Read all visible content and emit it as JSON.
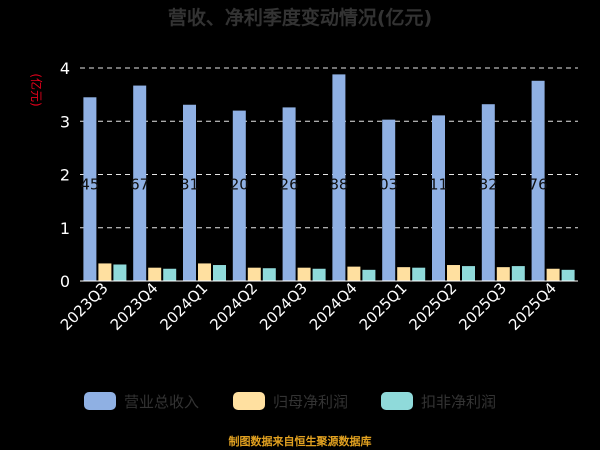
{
  "chart_data": {
    "type": "bar",
    "title": "营收、净利季度变动情况(亿元)",
    "ylabel": "(亿元)",
    "xlabel": "",
    "ylim": [
      0,
      4
    ],
    "yticks": [
      0,
      1,
      2,
      3,
      4
    ],
    "grid": true,
    "legend_position": "bottom",
    "categories": [
      "2023Q3",
      "2023Q4",
      "2024Q1",
      "2024Q2",
      "2024Q3",
      "2024Q4",
      "2025Q1",
      "2025Q2",
      "2025Q3",
      "2025Q4"
    ],
    "series": [
      {
        "name": "营业总收入",
        "color": "#8fb0e3",
        "values": [
          3.45,
          3.67,
          3.31,
          3.2,
          3.26,
          3.88,
          3.03,
          3.11,
          3.32,
          3.76
        ],
        "labels": [
          "45",
          "67",
          "31",
          "20",
          "26",
          "88",
          "03",
          "11",
          "32",
          "76"
        ]
      },
      {
        "name": "归母净利润",
        "color": "#ffe0a0",
        "values": [
          0.33,
          0.25,
          0.33,
          0.25,
          0.25,
          0.27,
          0.26,
          0.3,
          0.26,
          0.23
        ]
      },
      {
        "name": "扣非净利润",
        "color": "#8fdada",
        "values": [
          0.31,
          0.23,
          0.3,
          0.24,
          0.23,
          0.21,
          0.25,
          0.28,
          0.28,
          0.21
        ]
      }
    ]
  },
  "source_note": "制图数据来自恒生聚源数据库"
}
